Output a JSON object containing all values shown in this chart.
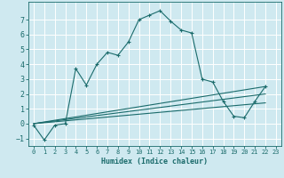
{
  "title": "",
  "xlabel": "Humidex (Indice chaleur)",
  "ylabel": "",
  "background_color": "#cfe9f0",
  "grid_color": "#ffffff",
  "line_color": "#1a6b6b",
  "xlim": [
    -0.5,
    23.5
  ],
  "ylim": [
    -1.5,
    8.2
  ],
  "yticks": [
    -1,
    0,
    1,
    2,
    3,
    4,
    5,
    6,
    7
  ],
  "xticks": [
    0,
    1,
    2,
    3,
    4,
    5,
    6,
    7,
    8,
    9,
    10,
    11,
    12,
    13,
    14,
    15,
    16,
    17,
    18,
    19,
    20,
    21,
    22,
    23
  ],
  "curve1_x": [
    0,
    1,
    2,
    3,
    4,
    5,
    6,
    7,
    8,
    9,
    10,
    11,
    12,
    13,
    14,
    15,
    16,
    17,
    18,
    19,
    20,
    21,
    22
  ],
  "curve1_y": [
    -0.1,
    -1.1,
    -0.1,
    0.0,
    3.7,
    2.6,
    4.0,
    4.8,
    4.6,
    5.5,
    7.0,
    7.3,
    7.6,
    6.9,
    6.3,
    6.1,
    3.0,
    2.8,
    1.5,
    0.5,
    0.4,
    1.5,
    2.5
  ],
  "curve2_x": [
    0,
    22
  ],
  "curve2_y": [
    0,
    2.5
  ],
  "curve3_x": [
    0,
    22
  ],
  "curve3_y": [
    0,
    2.0
  ],
  "curve4_x": [
    0,
    22
  ],
  "curve4_y": [
    0,
    1.4
  ]
}
